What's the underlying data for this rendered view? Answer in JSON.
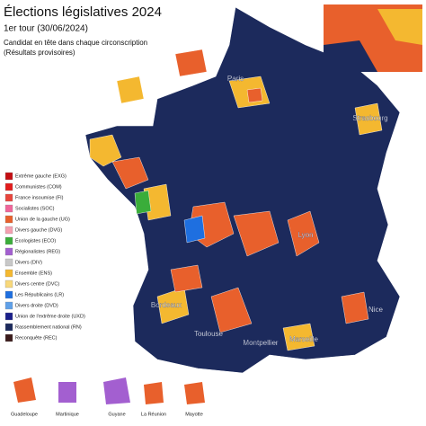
{
  "header": {
    "title": "Élections législatives 2024",
    "subtitle": "1er tour (30/06/2024)",
    "description": [
      "Candidat en tête dans chaque circonscription",
      "(Résultats provisoires)"
    ]
  },
  "legend": [
    {
      "label": "Extrême gauche (EXG)",
      "color": "#c40d12"
    },
    {
      "label": "Communistes (COM)",
      "color": "#e21c1c"
    },
    {
      "label": "France insoumise (FI)",
      "color": "#e8453c"
    },
    {
      "label": "Socialistes (SOC)",
      "color": "#f0659a"
    },
    {
      "label": "Union de la gauche (UG)",
      "color": "#e8602c"
    },
    {
      "label": "Divers gauche (DVG)",
      "color": "#f59fb0"
    },
    {
      "label": "Écologistes (ECO)",
      "color": "#3aad3a"
    },
    {
      "label": "Régionalistes (REG)",
      "color": "#a35fd0"
    },
    {
      "label": "Divers (DIV)",
      "color": "#c8c8c8"
    },
    {
      "label": "Ensemble (ENS)",
      "color": "#f4b830"
    },
    {
      "label": "Divers centre (DVC)",
      "color": "#f8d87a"
    },
    {
      "label": "Les Républicains (LR)",
      "color": "#1e6fe0"
    },
    {
      "label": "Divers droite (DVD)",
      "color": "#5fa0e8"
    },
    {
      "label": "Union de l'extrême droite (UXD)",
      "color": "#1a1f8a"
    },
    {
      "label": "Rassemblement national (RN)",
      "color": "#1c2a5c"
    },
    {
      "label": "Reconquête (REC)",
      "color": "#3a1a1a"
    }
  ],
  "cities": [
    "Paris",
    "Strasbourg",
    "Lyon",
    "Bordeaux",
    "Marseille",
    "Toulouse",
    "Montpellier",
    "Nice"
  ],
  "insets": [
    "Guadeloupe",
    "Martinique",
    "Guyane",
    "La Réunion",
    "Mayotte"
  ]
}
